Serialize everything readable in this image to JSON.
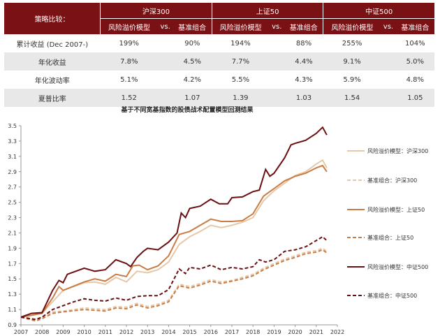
{
  "table": {
    "corner": "策略比较：",
    "groups": [
      "沪深300",
      "上证50",
      "中证500"
    ],
    "sub": [
      "风险溢价模型",
      "vs.",
      "基准组合"
    ],
    "rows": [
      {
        "label": "累计收益 (Dec 2007-)",
        "values": [
          "199%",
          "90%",
          "194%",
          "88%",
          "255%",
          "104%"
        ]
      },
      {
        "label": "年化收益",
        "values": [
          "7.8%",
          "4.5%",
          "7.7%",
          "4.4%",
          "9.1%",
          "5.0%"
        ]
      },
      {
        "label": "年化波动率",
        "values": [
          "5.1%",
          "4.2%",
          "5.5%",
          "4.3%",
          "5.9%",
          "4.8%"
        ]
      },
      {
        "label": "夏普比率",
        "values": [
          "1.52",
          "1.07",
          "1.39",
          "1.03",
          "1.54",
          "1.05"
        ]
      }
    ]
  },
  "chart_data": {
    "type": "line",
    "title": "基于不同宽基指数的股债战术配置模型回测结果",
    "xlabel": "",
    "ylabel": "",
    "xlim": [
      2007,
      2022
    ],
    "ylim": [
      0.9,
      3.5
    ],
    "xticks": [
      "2007",
      "2008",
      "2009",
      "2010",
      "2011",
      "2012",
      "2013",
      "2014",
      "2015",
      "2016",
      "2017",
      "2018",
      "2019",
      "2020",
      "2021",
      "2022"
    ],
    "yticks": [
      "0.9",
      "1.1",
      "1.3",
      "1.5",
      "1.7",
      "1.9",
      "2.1",
      "2.3",
      "2.5",
      "2.7",
      "2.9",
      "3.1",
      "3.3",
      "3.5"
    ],
    "legend_position": "right",
    "series": [
      {
        "name": "风险溢价模型：沪深300",
        "color": "#e6c8a6",
        "dash": false,
        "x": [
          2007,
          2008,
          2008.5,
          2009,
          2010,
          2010.5,
          2011,
          2011.5,
          2012,
          2012.5,
          2013,
          2013.5,
          2014,
          2014.5,
          2015,
          2015.5,
          2016,
          2016.5,
          2017,
          2017.5,
          2018,
          2018.5,
          2019,
          2019.5,
          2020,
          2020.5,
          2021,
          2021.3,
          2021.5
        ],
        "y": [
          1.0,
          1.05,
          1.2,
          1.35,
          1.45,
          1.46,
          1.43,
          1.52,
          1.46,
          1.6,
          1.58,
          1.62,
          1.72,
          1.95,
          2.05,
          2.12,
          2.2,
          2.17,
          2.2,
          2.24,
          2.3,
          2.52,
          2.65,
          2.75,
          2.85,
          2.9,
          3.0,
          3.05,
          2.95
        ]
      },
      {
        "name": "基准组合：沪深300",
        "color": "#e6c8a6",
        "dash": true,
        "x": [
          2007,
          2007.7,
          2008,
          2008.5,
          2009,
          2010,
          2011,
          2011.5,
          2012,
          2012.5,
          2013,
          2013.5,
          2014,
          2014.5,
          2015,
          2015.5,
          2016,
          2016.5,
          2017,
          2017.5,
          2018,
          2018.5,
          2019,
          2019.5,
          2020,
          2020.5,
          2021,
          2021.3,
          2021.5
        ],
        "y": [
          1.0,
          0.96,
          1.0,
          1.07,
          1.08,
          1.12,
          1.1,
          1.14,
          1.13,
          1.18,
          1.14,
          1.17,
          1.22,
          1.43,
          1.4,
          1.44,
          1.49,
          1.46,
          1.48,
          1.52,
          1.56,
          1.64,
          1.7,
          1.76,
          1.8,
          1.85,
          1.87,
          1.9,
          1.86
        ]
      },
      {
        "name": "风险溢价模型：上证50",
        "color": "#c97c45",
        "dash": false,
        "x": [
          2007,
          2008,
          2008.5,
          2008.8,
          2009,
          2010,
          2010.5,
          2011,
          2011.5,
          2012,
          2012.3,
          2012.6,
          2013,
          2013.5,
          2014,
          2014.5,
          2015,
          2015.5,
          2016,
          2016.5,
          2017,
          2017.5,
          2018,
          2018.5,
          2019,
          2019.5,
          2020,
          2020.5,
          2021,
          2021.3,
          2021.5
        ],
        "y": [
          1.0,
          1.05,
          1.25,
          1.4,
          1.35,
          1.46,
          1.5,
          1.47,
          1.56,
          1.53,
          1.67,
          1.68,
          1.62,
          1.67,
          1.8,
          2.08,
          2.12,
          2.2,
          2.28,
          2.25,
          2.25,
          2.26,
          2.35,
          2.58,
          2.68,
          2.78,
          2.84,
          2.88,
          2.95,
          2.98,
          2.9
        ]
      },
      {
        "name": "基准组合：上证50",
        "color": "#c97c45",
        "dash": true,
        "x": [
          2007,
          2007.7,
          2008,
          2008.5,
          2009,
          2010,
          2011,
          2011.5,
          2012,
          2012.5,
          2013,
          2013.5,
          2014,
          2014.5,
          2015,
          2015.5,
          2016,
          2016.5,
          2017,
          2017.5,
          2018,
          2018.5,
          2019,
          2019.5,
          2020,
          2020.5,
          2021,
          2021.3,
          2021.5
        ],
        "y": [
          1.0,
          0.95,
          0.98,
          1.05,
          1.07,
          1.1,
          1.08,
          1.12,
          1.11,
          1.16,
          1.12,
          1.15,
          1.2,
          1.41,
          1.38,
          1.42,
          1.47,
          1.44,
          1.47,
          1.5,
          1.54,
          1.62,
          1.68,
          1.74,
          1.78,
          1.83,
          1.85,
          1.88,
          1.84
        ]
      },
      {
        "name": "风险溢价模型：中证500",
        "color": "#6b0f12",
        "dash": false,
        "x": [
          2007,
          2007.5,
          2008,
          2008.5,
          2008.8,
          2009,
          2009.2,
          2010,
          2010.5,
          2011,
          2011.5,
          2012,
          2012.2,
          2012.5,
          2012.8,
          2013,
          2013.5,
          2014,
          2014.4,
          2014.6,
          2014.8,
          2015,
          2015.5,
          2016,
          2016.4,
          2016.8,
          2017,
          2017.5,
          2018,
          2018.3,
          2018.6,
          2018.8,
          2019,
          2019.5,
          2019.8,
          2020,
          2020.5,
          2021,
          2021.3,
          2021.5
        ],
        "y": [
          1.0,
          1.05,
          1.06,
          1.35,
          1.48,
          1.45,
          1.56,
          1.64,
          1.6,
          1.62,
          1.75,
          1.7,
          1.66,
          1.78,
          1.86,
          1.9,
          1.88,
          1.98,
          2.1,
          2.36,
          2.3,
          2.42,
          2.45,
          2.54,
          2.48,
          2.48,
          2.56,
          2.57,
          2.64,
          2.66,
          2.93,
          2.84,
          2.88,
          3.08,
          3.25,
          3.27,
          3.31,
          3.4,
          3.48,
          3.38
        ]
      },
      {
        "name": "基准组合：中证500",
        "color": "#6b0f12",
        "dash": true,
        "x": [
          2007,
          2007.7,
          2008,
          2008.5,
          2009,
          2009.5,
          2010,
          2010.5,
          2011,
          2011.5,
          2012,
          2012.5,
          2013,
          2013.5,
          2014,
          2014.5,
          2014.8,
          2015,
          2015.5,
          2016,
          2016.5,
          2017,
          2017.5,
          2018,
          2018.3,
          2018.6,
          2019,
          2019.5,
          2020,
          2020.5,
          2021,
          2021.3,
          2021.5
        ],
        "y": [
          1.0,
          0.97,
          1.0,
          1.1,
          1.15,
          1.2,
          1.24,
          1.22,
          1.21,
          1.25,
          1.22,
          1.27,
          1.28,
          1.28,
          1.36,
          1.63,
          1.57,
          1.65,
          1.63,
          1.68,
          1.62,
          1.65,
          1.63,
          1.66,
          1.75,
          1.72,
          1.75,
          1.86,
          1.88,
          1.92,
          2.0,
          2.05,
          2.0
        ]
      }
    ]
  }
}
